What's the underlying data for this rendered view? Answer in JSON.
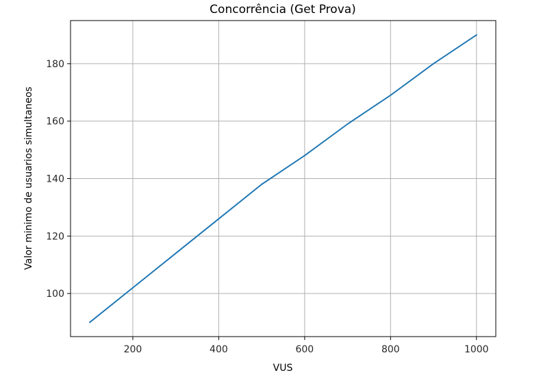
{
  "chart_data": {
    "type": "line",
    "title": "Concorrência (Get Prova)",
    "xlabel": "VUS",
    "ylabel": "Valor minimo de usuarios simultaneos",
    "xlim": [
      55,
      1045
    ],
    "ylim": [
      85,
      195
    ],
    "xticks": [
      200,
      400,
      600,
      800,
      1000
    ],
    "yticks": [
      100,
      120,
      140,
      160,
      180
    ],
    "grid": true,
    "series": [
      {
        "x": [
          100,
          200,
          300,
          400,
          500,
          600,
          700,
          800,
          900,
          1000
        ],
        "y": [
          90,
          102,
          114,
          126,
          138,
          148,
          159,
          169,
          180,
          190
        ],
        "color": "#1f77b4"
      }
    ]
  }
}
